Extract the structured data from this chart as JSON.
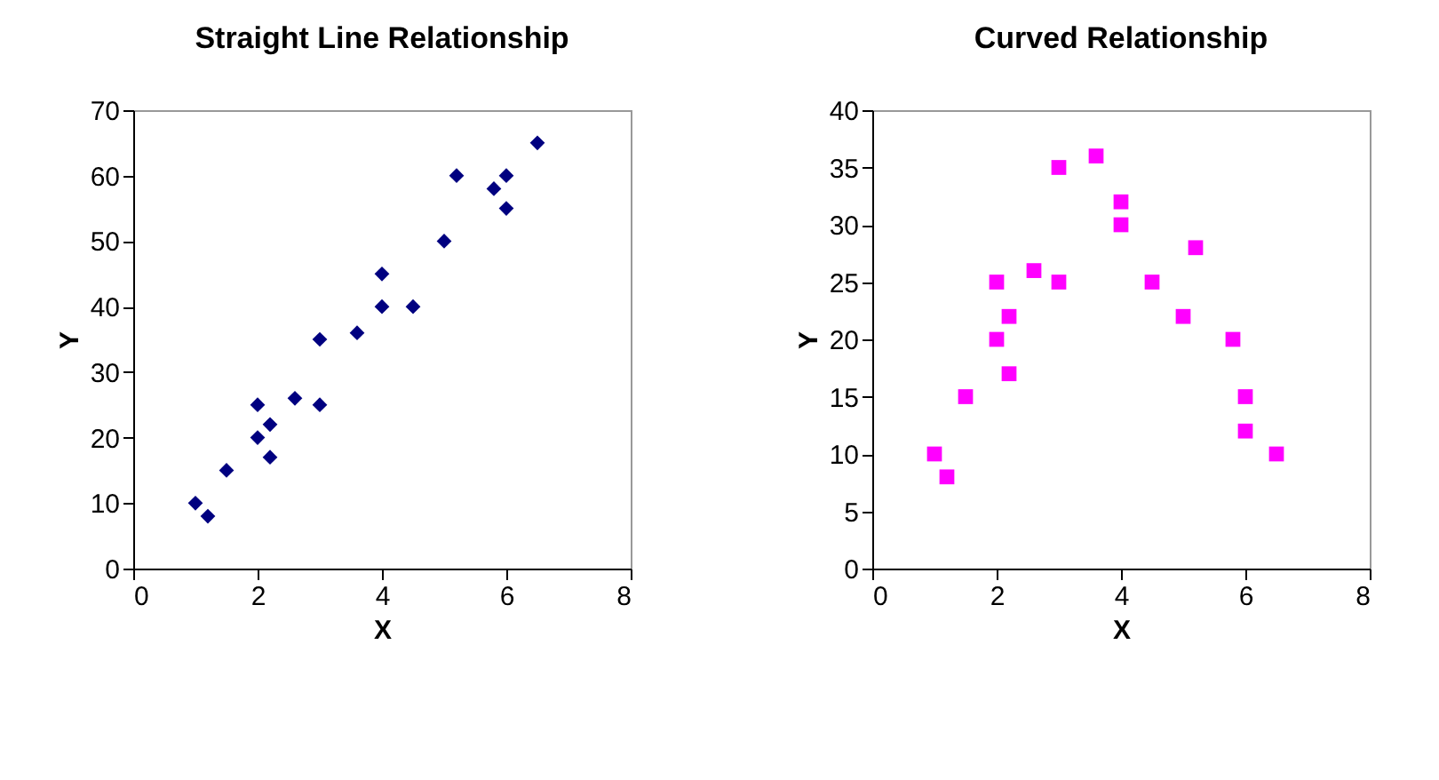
{
  "chart_data": [
    {
      "type": "scatter",
      "title": "Straight Line Relationship",
      "xlabel": "X",
      "ylabel": "Y",
      "marker": "diamond",
      "grid": false,
      "x": [
        1,
        1.2,
        1.5,
        2,
        2,
        2.2,
        2.2,
        2.6,
        3,
        3,
        3.6,
        4,
        4,
        4.5,
        5,
        5.2,
        5.8,
        6,
        6,
        6.5
      ],
      "series": [
        {
          "color": "#000080",
          "values": [
            10,
            8,
            15,
            25,
            20,
            22,
            17,
            26,
            35,
            25,
            36,
            45,
            40,
            40,
            50,
            60,
            58,
            60,
            55,
            65
          ]
        }
      ],
      "xlim": [
        0,
        8
      ],
      "xticks": [
        0,
        2,
        4,
        6,
        8
      ],
      "ylim": [
        0,
        70
      ],
      "yticks": [
        0,
        10,
        20,
        30,
        40,
        50,
        60,
        70
      ]
    },
    {
      "type": "scatter",
      "title": "Curved Relationship",
      "xlabel": "X",
      "ylabel": "Y",
      "marker": "square",
      "grid": false,
      "x": [
        1,
        1.2,
        1.5,
        2,
        2,
        2.2,
        2.2,
        2.6,
        3,
        3,
        3.6,
        4,
        4,
        4.5,
        5,
        5.2,
        5.8,
        6,
        6,
        6.5
      ],
      "series": [
        {
          "color": "#ff00ff",
          "values": [
            10,
            8,
            15,
            25,
            20,
            22,
            17,
            26,
            35,
            25,
            36,
            32,
            30,
            25,
            22,
            28,
            20,
            15,
            12,
            10
          ]
        }
      ],
      "xlim": [
        0,
        8
      ],
      "xticks": [
        0,
        2,
        4,
        6,
        8
      ],
      "ylim": [
        0,
        40
      ],
      "yticks": [
        0,
        5,
        10,
        15,
        20,
        25,
        30,
        35,
        40
      ]
    }
  ]
}
